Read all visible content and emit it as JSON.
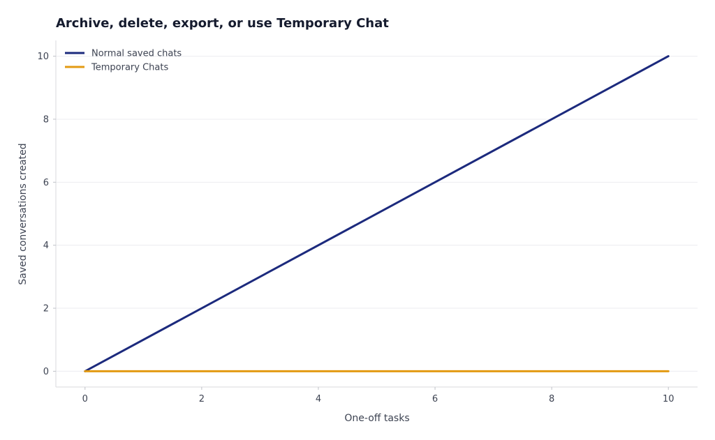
{
  "chart_data": {
    "type": "line",
    "title": "Archive, delete, export, or use Temporary Chat",
    "xlabel": "One-off tasks",
    "ylabel": "Saved conversations created",
    "xlim": [
      -0.5,
      10.5
    ],
    "ylim": [
      -0.5,
      10.5
    ],
    "xticks": [
      0,
      2,
      4,
      6,
      8,
      10
    ],
    "yticks": [
      0,
      2,
      4,
      6,
      8,
      10
    ],
    "grid": "horizontal",
    "legend_position": "top-left",
    "series": [
      {
        "name": "Normal saved chats",
        "color": "#1c2a7d",
        "x": [
          0,
          10
        ],
        "y": [
          0,
          10
        ]
      },
      {
        "name": "Temporary Chats",
        "color": "#e39a12",
        "x": [
          0,
          10
        ],
        "y": [
          0,
          0
        ]
      }
    ]
  }
}
